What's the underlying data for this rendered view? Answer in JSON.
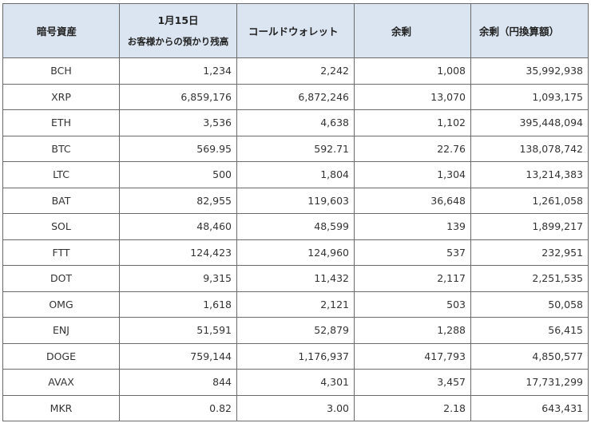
{
  "header": {
    "asset": "暗号資産",
    "customer_date": "1月15日",
    "customer_label": "お客様からの預かり残高",
    "cold_wallet": "コールドウォレット",
    "surplus": "余剰",
    "surplus_jpy": "余剰（円換算額）"
  },
  "rows": [
    {
      "asset": "BCH",
      "customer": "1,234",
      "cold": "2,242",
      "surplus": "1,008",
      "jpy": "35,992,938"
    },
    {
      "asset": "XRP",
      "customer": "6,859,176",
      "cold": "6,872,246",
      "surplus": "13,070",
      "jpy": "1,093,175"
    },
    {
      "asset": "ETH",
      "customer": "3,536",
      "cold": "4,638",
      "surplus": "1,102",
      "jpy": "395,448,094"
    },
    {
      "asset": "BTC",
      "customer": "569.95",
      "cold": "592.71",
      "surplus": "22.76",
      "jpy": "138,078,742"
    },
    {
      "asset": "LTC",
      "customer": "500",
      "cold": "1,804",
      "surplus": "1,304",
      "jpy": "13,214,383"
    },
    {
      "asset": "BAT",
      "customer": "82,955",
      "cold": "119,603",
      "surplus": "36,648",
      "jpy": "1,261,058"
    },
    {
      "asset": "SOL",
      "customer": "48,460",
      "cold": "48,599",
      "surplus": "139",
      "jpy": "1,899,217"
    },
    {
      "asset": "FTT",
      "customer": "124,423",
      "cold": "124,960",
      "surplus": "537",
      "jpy": "232,951"
    },
    {
      "asset": "DOT",
      "customer": "9,315",
      "cold": "11,432",
      "surplus": "2,117",
      "jpy": "2,251,535"
    },
    {
      "asset": "OMG",
      "customer": "1,618",
      "cold": "2,121",
      "surplus": "503",
      "jpy": "50,058"
    },
    {
      "asset": "ENJ",
      "customer": "51,591",
      "cold": "52,879",
      "surplus": "1,288",
      "jpy": "56,415"
    },
    {
      "asset": "DOGE",
      "customer": "759,144",
      "cold": "1,176,937",
      "surplus": "417,793",
      "jpy": "4,850,577"
    },
    {
      "asset": "AVAX",
      "customer": "844",
      "cold": "4,301",
      "surplus": "3,457",
      "jpy": "17,731,299"
    },
    {
      "asset": "MKR",
      "customer": "0.82",
      "cold": "3.00",
      "surplus": "2.18",
      "jpy": "643,431"
    }
  ]
}
